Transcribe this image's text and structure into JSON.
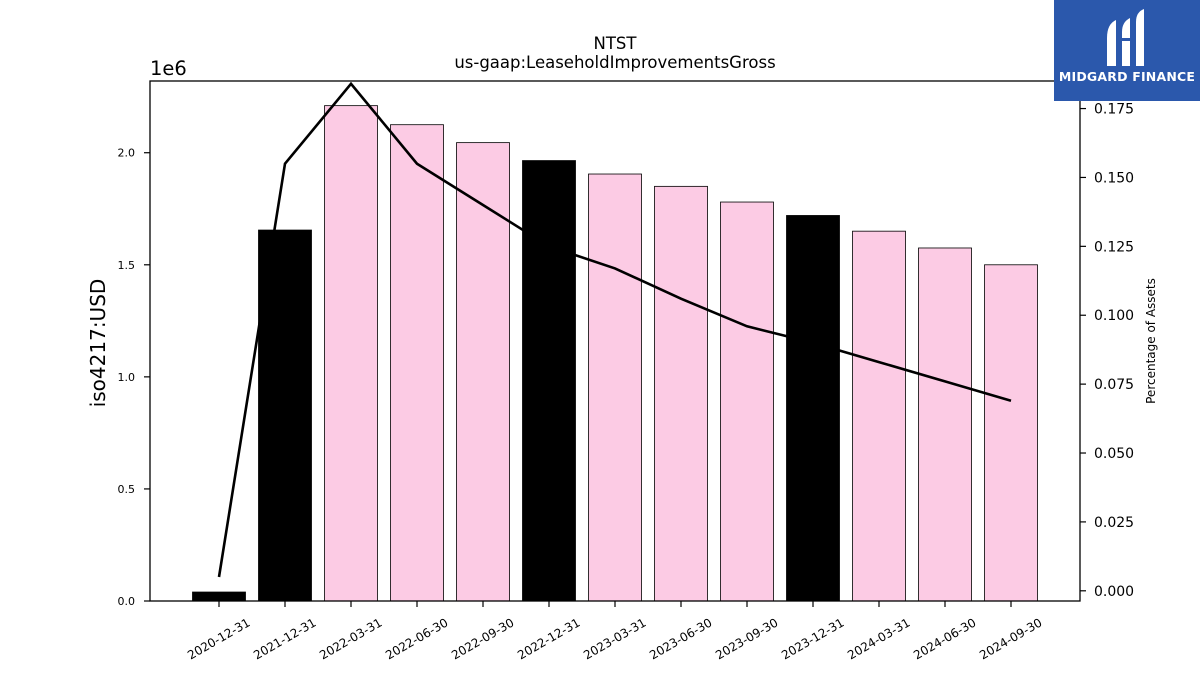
{
  "chart_data": {
    "type": "bar",
    "title": "NTST",
    "subtitle": "us-gaap:LeaseholdImprovementsGross",
    "ylabel": "iso4217:USD",
    "y_offset_label": "1e6",
    "y2label": "Percentage of Assets",
    "categories": [
      "2020-12-31",
      "2021-12-31",
      "2022-03-31",
      "2022-06-30",
      "2022-09-30",
      "2022-12-31",
      "2023-03-31",
      "2023-06-30",
      "2023-09-30",
      "2023-12-31",
      "2024-03-31",
      "2024-06-30",
      "2024-09-30"
    ],
    "series": [
      {
        "type": "bar",
        "values": [
          40000,
          1655000,
          2210000,
          2125000,
          2045000,
          1965000,
          1905000,
          1850000,
          1780000,
          1720000,
          1650000,
          1575000,
          1500000
        ],
        "colors": [
          "#000000",
          "#000000",
          "#fccbe4",
          "#fccbe4",
          "#fccbe4",
          "#000000",
          "#fccbe4",
          "#fccbe4",
          "#fccbe4",
          "#000000",
          "#fccbe4",
          "#fccbe4",
          "#fccbe4"
        ]
      },
      {
        "type": "line",
        "axis": "right",
        "values": [
          0.005,
          0.155,
          0.184,
          0.155,
          0.14,
          0.125,
          0.117,
          0.106,
          0.096,
          0.09,
          0.083,
          0.076,
          0.069
        ],
        "color": "#000000"
      }
    ],
    "ylim": [
      0,
      2320000
    ],
    "y_ticks": [
      {
        "value": 0,
        "label": "0.0"
      },
      {
        "value": 500000,
        "label": "0.5"
      },
      {
        "value": 1000000,
        "label": "1.0"
      },
      {
        "value": 1500000,
        "label": "1.5"
      },
      {
        "value": 2000000,
        "label": "2.0"
      }
    ],
    "y2lim": [
      -0.0037,
      0.185
    ],
    "y2_ticks": [
      {
        "value": 0,
        "label": "0.000"
      },
      {
        "value": 0.025,
        "label": "0.025"
      },
      {
        "value": 0.05,
        "label": "0.050"
      },
      {
        "value": 0.075,
        "label": "0.075"
      },
      {
        "value": 0.1,
        "label": "0.100"
      },
      {
        "value": 0.125,
        "label": "0.125"
      },
      {
        "value": 0.15,
        "label": "0.150"
      },
      {
        "value": 0.175,
        "label": "0.175"
      }
    ],
    "grid": false
  },
  "logo": {
    "text": "MIDGARD FINANCE",
    "icon": "midgard-finance-logo-icon",
    "background": "#2b58ac"
  }
}
